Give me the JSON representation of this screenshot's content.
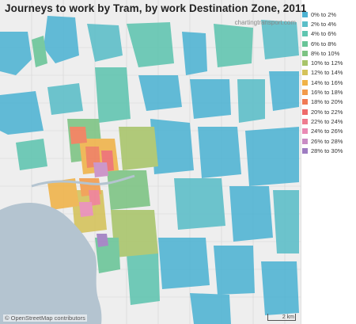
{
  "title": "Journeys to work by Tram, by work Destination Zone, 2011",
  "credit": "chartingtransport.com",
  "attribution": "© OpenStreetMap contributors",
  "scale_label": "2 km",
  "colors": {
    "water": "#b4c4d0",
    "land": "#eeeeee",
    "street": "#d6d6d6"
  },
  "legend": [
    {
      "label": "0% to 2%",
      "color": "#4eb3d3"
    },
    {
      "label": "2% to 4%",
      "color": "#5bbec8"
    },
    {
      "label": "4% to 6%",
      "color": "#5fc5b0"
    },
    {
      "label": "6% to 8%",
      "color": "#68c497"
    },
    {
      "label": "8% to 10%",
      "color": "#7cc383"
    },
    {
      "label": "10% to 12%",
      "color": "#a8c46a"
    },
    {
      "label": "12% to 14%",
      "color": "#d4c25a"
    },
    {
      "label": "14% to 16%",
      "color": "#f0b247"
    },
    {
      "label": "16% to 18%",
      "color": "#f29a4a"
    },
    {
      "label": "18% to 20%",
      "color": "#f07a55"
    },
    {
      "label": "20% to 22%",
      "color": "#ee6a6a"
    },
    {
      "label": "22% to 24%",
      "color": "#ee7c8f"
    },
    {
      "label": "24% to 26%",
      "color": "#e98ab4"
    },
    {
      "label": "26% to 28%",
      "color": "#c98cc4"
    },
    {
      "label": "28% to 30%",
      "color": "#9e7cc1"
    }
  ]
}
